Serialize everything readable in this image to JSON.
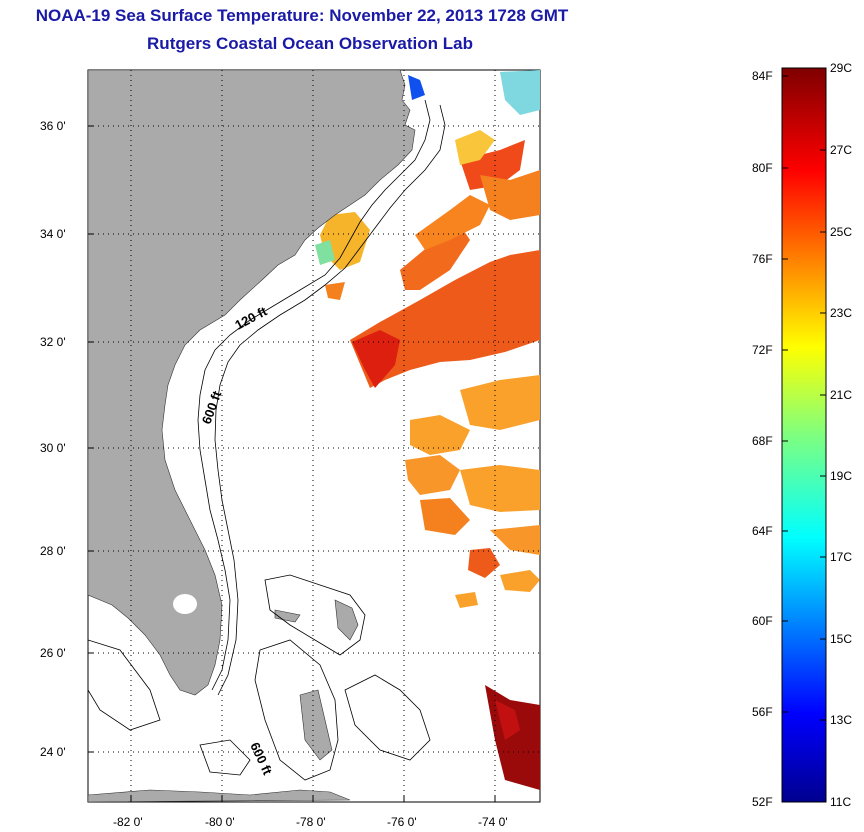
{
  "title": {
    "line1": "NOAA-19 Sea Surface Temperature:  November 22, 2013 1728 GMT",
    "line2": "Rutgers Coastal Ocean Observation Lab"
  },
  "map": {
    "lat_ticks": [
      "36 0'",
      "34 0'",
      "32 0'",
      "30 0'",
      "28 0'",
      "26 0'",
      "24 0'"
    ],
    "lon_ticks": [
      "-82 0'",
      "-80 0'",
      "-78 0'",
      "-76 0'",
      "-74 0'"
    ],
    "contour_labels": [
      "120 ft",
      "600 ft",
      "600 ft"
    ],
    "colors": {
      "land": "#aaaaaa",
      "ocean": "#ffffff",
      "grid": "#000000"
    }
  },
  "colorbar": {
    "fahrenheit": [
      "84F",
      "80F",
      "76F",
      "72F",
      "68F",
      "64F",
      "60F",
      "56F",
      "52F"
    ],
    "celsius": [
      "29C",
      "27C",
      "25C",
      "23C",
      "21C",
      "19C",
      "17C",
      "15C",
      "13C",
      "11C"
    ],
    "colormap": "jet"
  }
}
